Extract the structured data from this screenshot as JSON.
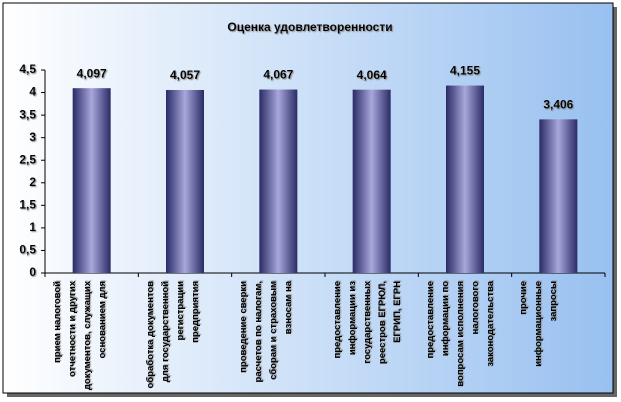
{
  "chart_data": {
    "type": "bar",
    "title": "Оценка удовлетворенности",
    "categories": [
      "прием налоговой отчетности и других документов, служащих основанием для",
      "обработка документов для государственной регистрации предприятия",
      "проведение сверки расчетов по налогам, сборам и страховым взносам на",
      "предоставление информации из государственных реестров ЕГРЮЛ, ЕГРИП, ЕГРН",
      "предоставление информации по вопросам исполнения налогового законодательства",
      "прочие информационные запросы"
    ],
    "values": [
      4.097,
      4.057,
      4.067,
      4.064,
      4.155,
      3.406
    ],
    "value_labels": [
      "4,097",
      "4,057",
      "4,067",
      "4,064",
      "4,155",
      "3,406"
    ],
    "color": "#a8a8dc",
    "ylim": [
      0,
      4.5
    ],
    "yticks": [
      0,
      {
        "value": 0.5,
        "label": "0,5"
      },
      1,
      {
        "value": 1.5,
        "label": "1,5"
      },
      2,
      {
        "value": 2.5,
        "label": "2,5"
      },
      3,
      {
        "value": 3.5,
        "label": "3,5"
      },
      4,
      {
        "value": 4.5,
        "label": "4,5"
      }
    ]
  }
}
